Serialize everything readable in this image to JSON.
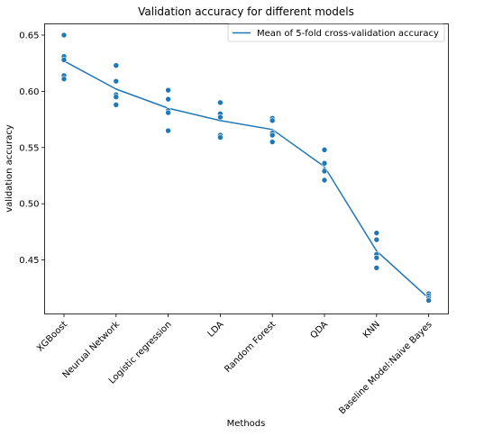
{
  "chart_data": {
    "type": "scatter",
    "title": "Validation accuracy for different models",
    "xlabel": "Methods",
    "ylabel": "validation accuracy",
    "categories": [
      "XGBoost",
      "Neurual Network",
      "Logistic regression",
      "LDA",
      "Random Forest",
      "QDA",
      "KNN",
      "Baseline Model:Naive Bayes"
    ],
    "ylim": [
      0.402,
      0.66
    ],
    "yticks": [
      0.45,
      0.5,
      0.55,
      0.6,
      0.65
    ],
    "ytick_labels": [
      "0.45",
      "0.50",
      "0.55",
      "0.60",
      "0.65"
    ],
    "grid": false,
    "legend": {
      "position": "top-right",
      "entries": [
        "Mean of 5-fold cross-validation accuracy"
      ]
    },
    "points": [
      [
        0.65,
        0.631,
        0.628,
        0.614,
        0.611
      ],
      [
        0.623,
        0.609,
        0.597,
        0.595,
        0.588
      ],
      [
        0.601,
        0.593,
        0.583,
        0.581,
        0.565
      ],
      [
        0.59,
        0.58,
        0.577,
        0.561,
        0.559
      ],
      [
        0.576,
        0.574,
        0.563,
        0.561,
        0.555
      ],
      [
        0.548,
        0.536,
        0.53,
        0.529,
        0.521
      ],
      [
        0.474,
        0.468,
        0.455,
        0.452,
        0.443
      ],
      [
        0.42,
        0.418,
        0.416,
        0.414,
        0.414
      ]
    ],
    "series": [
      {
        "name": "Mean of 5-fold cross-validation accuracy",
        "type": "line",
        "values": [
          0.627,
          0.602,
          0.585,
          0.574,
          0.566,
          0.533,
          0.458,
          0.416
        ]
      }
    ],
    "colors": {
      "points": "#1f77b4",
      "line": "#1f77b4"
    }
  }
}
